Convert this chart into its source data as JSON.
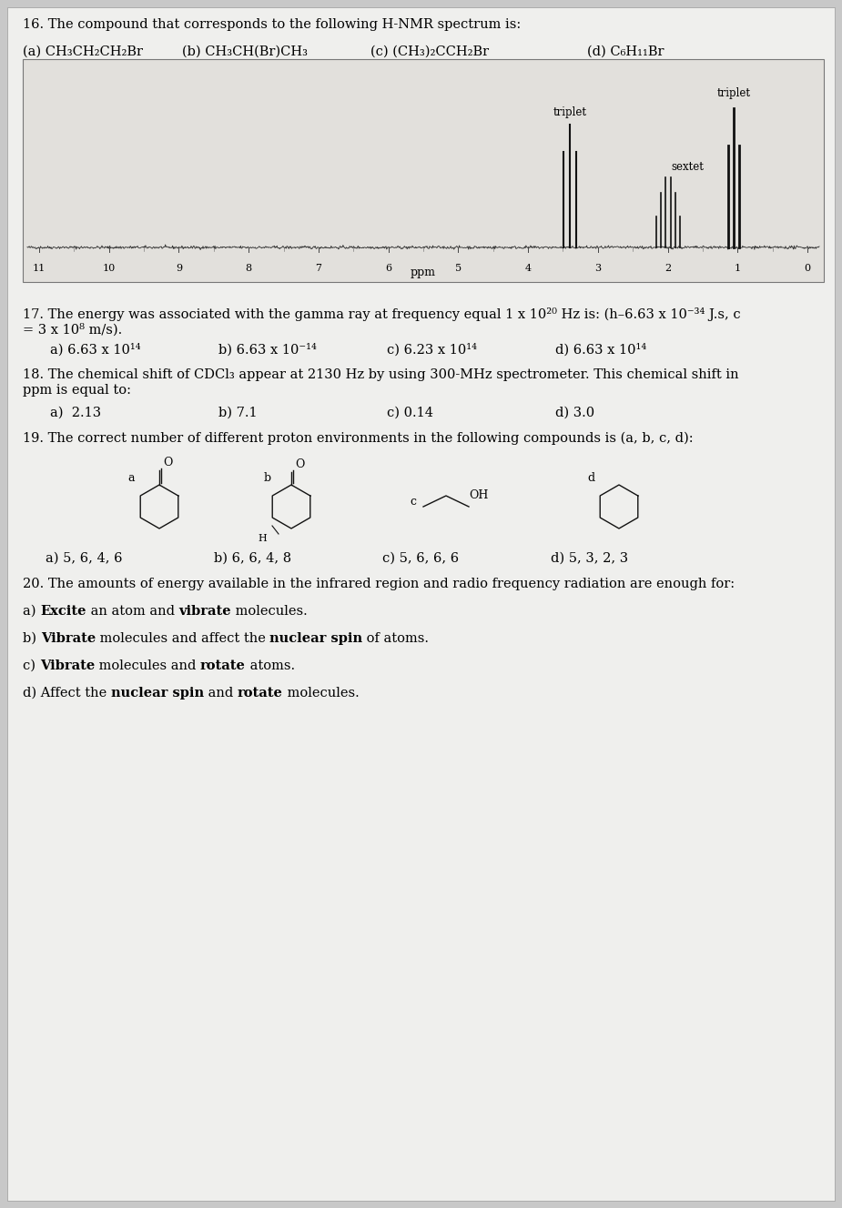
{
  "bg_color": "#c8c8c8",
  "paper_color": "#efefed",
  "title_q16": "16. The compound that corresponds to the following H-NMR spectrum is:",
  "q16_a": "(a) CH₃CH₂CH₂Br",
  "q16_b": "(b) CH₃CH(Br)CH₃",
  "q16_c": "(c) (CH₃)₂CCH₂Br",
  "q16_d": "(d) C₆H₁₁Br",
  "nmr_xticks": [
    11,
    10,
    9,
    8,
    7,
    6,
    5,
    4,
    3,
    2,
    1,
    0
  ],
  "nmr_xlabel": "ppm",
  "nmr_bg": "#e2e0dc",
  "q17_line1": "17. The energy was associated with the gamma ray at frequency equal 1 x 10²⁰ Hz is: (h–6.63 x 10⁻³⁴ J.s, c",
  "q17_line2": "= 3 x 10⁸ m/s).",
  "q17_a": "a) 6.63 x 10¹⁴",
  "q17_b": "b) 6.63 x 10⁻¹⁴",
  "q17_c": "c) 6.23 x 10¹⁴",
  "q17_d": "d) 6.63 x 10¹⁴",
  "q18_line1": "18. The chemical shift of CDCl₃ appear at 2130 Hz by using 300-MHz spectrometer. This chemical shift in",
  "q18_line2": "ppm is equal to:",
  "q18_a": "a)  2.13",
  "q18_b": "b) 7.1",
  "q18_c": "c) 0.14",
  "q18_d": "d) 3.0",
  "q19_line1": "19. The correct number of different proton environments in the following compounds is (a, b, c, d):",
  "q19_a": "a) 5, 6, 4, 6",
  "q19_b": "b) 6, 6, 4, 8",
  "q19_c": "c) 5, 6, 6, 6",
  "q19_d": "d) 5, 3, 2, 3",
  "q20_line1": "20. The amounts of energy available in the infrared region and radio frequency radiation are enough for:",
  "q20_a_normal": [
    "a) ",
    " an atom and ",
    " molecules."
  ],
  "q20_a_bold": [
    "Excite",
    "vibrate"
  ],
  "q20_b_normal": [
    "b) ",
    " molecules and affect the ",
    " of atoms."
  ],
  "q20_b_bold": [
    "Vibrate",
    "nuclear spin"
  ],
  "q20_c_normal": [
    "c) ",
    " molecules and ",
    " atoms."
  ],
  "q20_c_bold": [
    "Vibrate",
    "rotate"
  ],
  "q20_d_normal": [
    "d) Affect the ",
    " and ",
    " molecules."
  ],
  "q20_d_bold": [
    "nuclear spin",
    "rotate"
  ]
}
